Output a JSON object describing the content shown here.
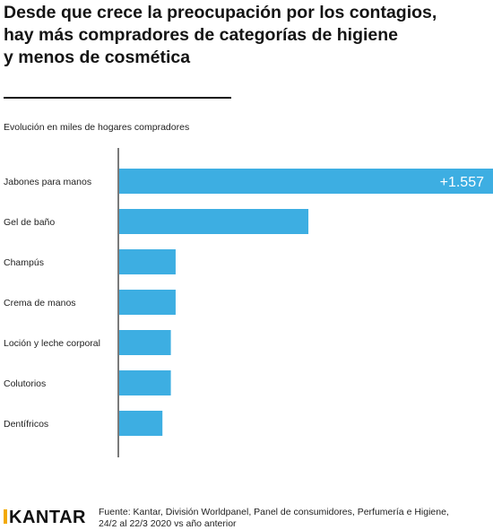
{
  "header": {
    "title_lines": [
      "Desde que crece la preocupación por los contagios,",
      "hay más compradores de categorías de higiene",
      "y menos de cosmética"
    ],
    "subtitle": "Evolución en miles de hogares compradores"
  },
  "chart_data": {
    "type": "bar",
    "orientation": "horizontal",
    "categories": [
      "Jabones para manos",
      "Gel de baño",
      "Champús",
      "Crema de manos",
      "Loción y leche corporal",
      "Colutorios",
      "Dentífricos"
    ],
    "values": [
      1557,
      788,
      235,
      235,
      215,
      215,
      180
    ],
    "data_labels": [
      "+1.557",
      "",
      "",
      "",
      "",
      "",
      ""
    ],
    "bar_color": "#3daee2",
    "label_color": "#ffffff",
    "xlim": [
      0,
      1557
    ],
    "grid": false,
    "legend": "none"
  },
  "footer": {
    "brand": "KANTAR",
    "brand_accent_color": "#f2a900",
    "source_lines": [
      "Fuente: Kantar, División Worldpanel, Panel de consumidores, Perfumería e Higiene,",
      "24/2 al 22/3 2020 vs año anterior"
    ]
  }
}
